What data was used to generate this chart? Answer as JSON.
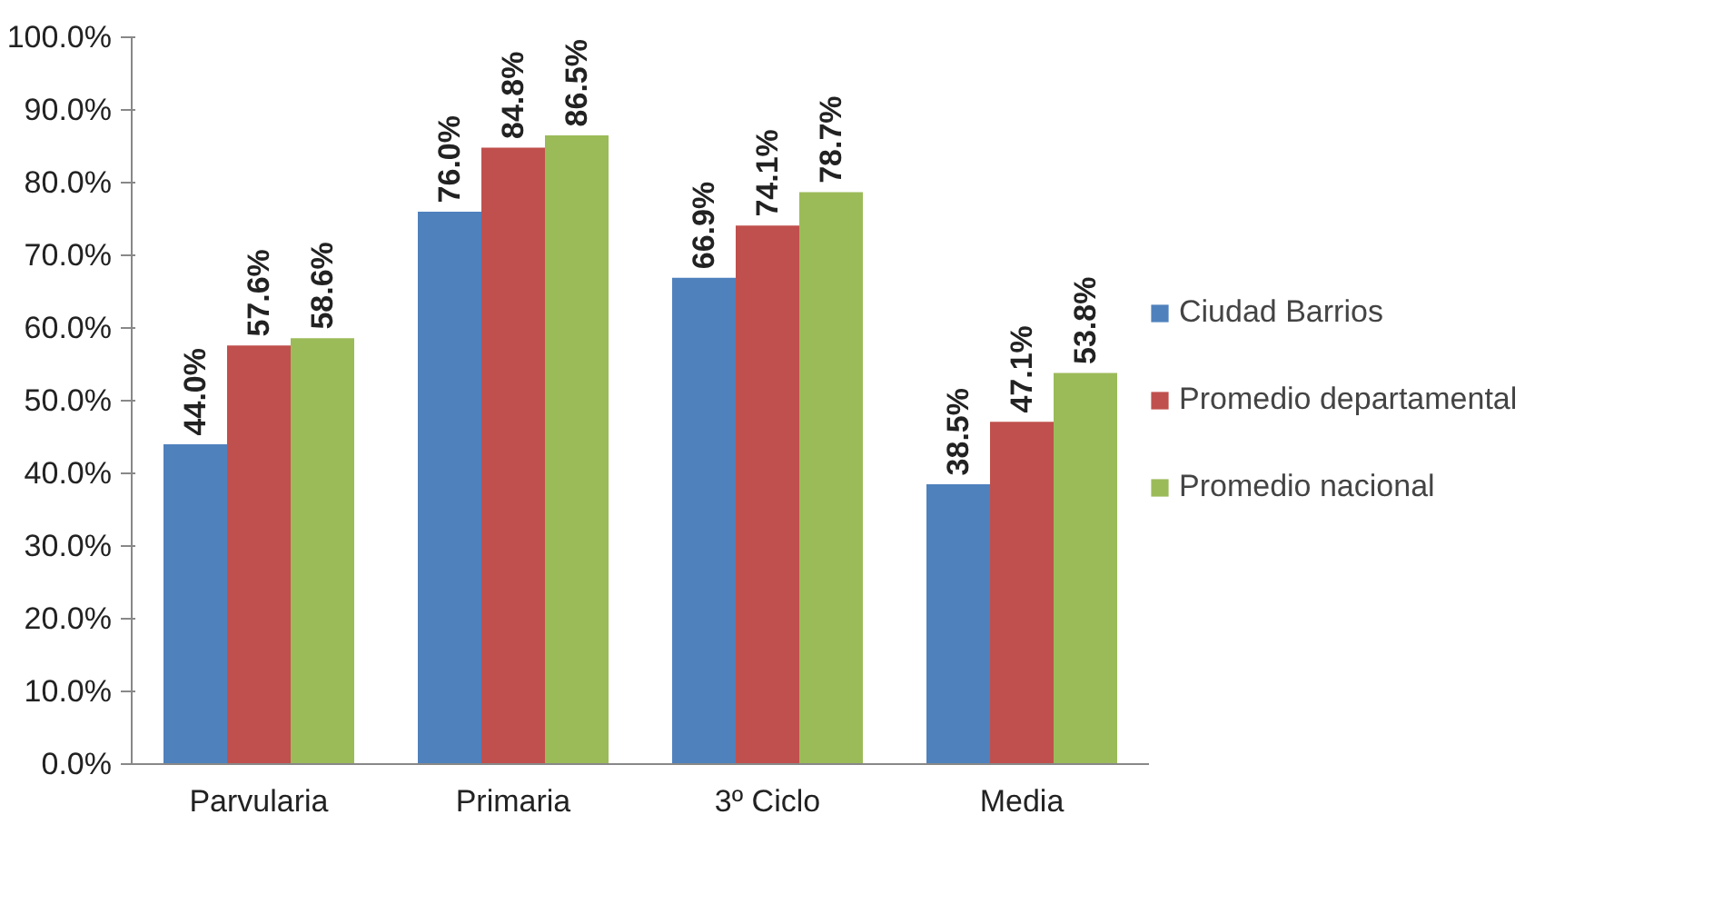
{
  "chart_data": {
    "type": "bar",
    "categories": [
      "Parvularia",
      "Primaria",
      "3º Ciclo",
      "Media"
    ],
    "series": [
      {
        "name": "Ciudad Barrios",
        "color": "#4f81bd",
        "values": [
          44.0,
          76.0,
          66.9,
          38.5
        ],
        "value_labels": [
          "44.0%",
          "76.0%",
          "66.9%",
          "38.5%"
        ]
      },
      {
        "name": "Promedio departamental",
        "color": "#c0504d",
        "values": [
          57.6,
          84.8,
          74.1,
          47.1
        ],
        "value_labels": [
          "57.6%",
          "84.8%",
          "74.1%",
          "47.1%"
        ]
      },
      {
        "name": "Promedio nacional",
        "color": "#9bbb59",
        "values": [
          58.6,
          86.5,
          78.7,
          53.8
        ],
        "value_labels": [
          "58.6%",
          "86.5%",
          "78.7%",
          "53.8%"
        ]
      }
    ],
    "ylim": [
      0,
      100
    ],
    "yticks": [
      {
        "value": 0,
        "label": "0.0%"
      },
      {
        "value": 10,
        "label": "10.0%"
      },
      {
        "value": 20,
        "label": "20.0%"
      },
      {
        "value": 30,
        "label": "30.0%"
      },
      {
        "value": 40,
        "label": "40.0%"
      },
      {
        "value": 50,
        "label": "50.0%"
      },
      {
        "value": 60,
        "label": "60.0%"
      },
      {
        "value": 70,
        "label": "70.0%"
      },
      {
        "value": 80,
        "label": "80.0%"
      },
      {
        "value": 90,
        "label": "90.0%"
      },
      {
        "value": 100,
        "label": "100.0%"
      }
    ],
    "grid": false,
    "legend": "right"
  }
}
